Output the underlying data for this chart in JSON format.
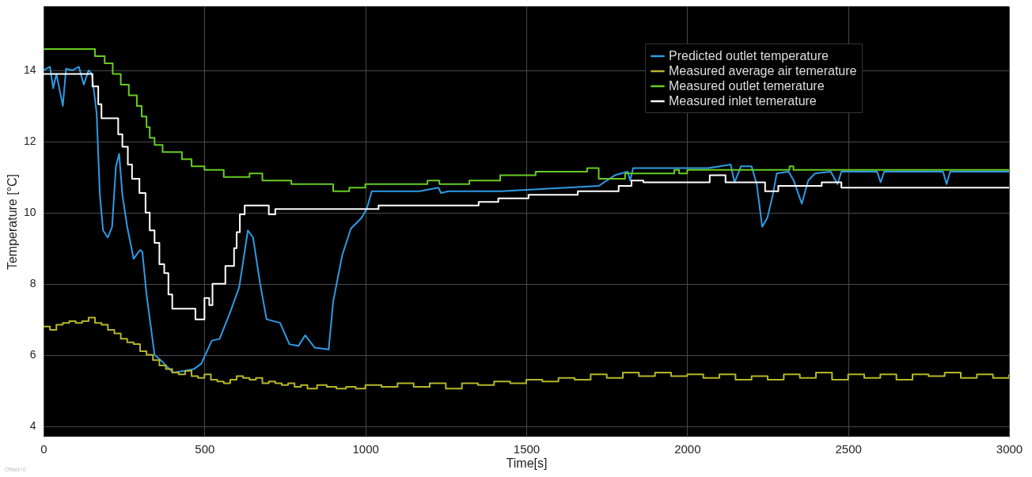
{
  "chart_data": {
    "type": "line",
    "xlabel": "Time[s]",
    "ylabel": "Temperature [°C]",
    "xlim": [
      0,
      3000
    ],
    "xticks": [
      0,
      500,
      1000,
      1500,
      2000,
      2500,
      3000
    ],
    "ylim": [
      3.7,
      15.8
    ],
    "yticks": [
      4,
      6,
      8,
      10,
      12,
      14
    ],
    "grid": true,
    "legend": "top right",
    "line_style": "solid",
    "annotations": [
      "Offset=0"
    ],
    "series": [
      {
        "name": "Predicted outlet temperature",
        "type": "line",
        "color": "#2e9be6",
        "x": [
          0,
          20,
          30,
          40,
          60,
          70,
          90,
          110,
          125,
          140,
          150,
          165,
          175,
          185,
          200,
          213,
          225,
          235,
          245,
          260,
          280,
          300,
          307,
          320,
          345,
          370,
          402,
          440,
          467,
          490,
          523,
          547,
          580,
          608,
          635,
          651,
          673,
          693,
          735,
          764,
          792,
          813,
          843,
          886,
          900,
          928,
          955,
          988,
          1004,
          1020,
          1168,
          1227,
          1235,
          1258,
          1422,
          1725,
          1775,
          1815,
          1823,
          1832,
          2066,
          2135,
          2147,
          2167,
          2200,
          2216,
          2233,
          2249,
          2266,
          2278,
          2315,
          2331,
          2356,
          2376,
          2397,
          2446,
          2467,
          2479,
          2590,
          2601,
          2612,
          2795,
          2806,
          2817,
          3000
        ],
        "values": [
          14.0,
          14.1,
          13.5,
          13.9,
          13.0,
          14.05,
          14.0,
          14.1,
          13.6,
          14.0,
          13.9,
          12.8,
          10.5,
          9.5,
          9.3,
          9.6,
          11.3,
          11.65,
          10.5,
          9.6,
          8.7,
          8.95,
          8.9,
          7.7,
          6.0,
          5.8,
          5.5,
          5.55,
          5.6,
          5.75,
          6.4,
          6.45,
          7.2,
          7.9,
          9.5,
          9.3,
          8.0,
          7.0,
          6.9,
          6.3,
          6.25,
          6.55,
          6.2,
          6.15,
          7.5,
          8.8,
          9.55,
          9.85,
          10.1,
          10.6,
          10.6,
          10.7,
          10.55,
          10.6,
          10.6,
          10.75,
          11.05,
          11.15,
          10.9,
          11.25,
          11.25,
          11.35,
          10.85,
          11.3,
          11.3,
          10.8,
          9.6,
          9.85,
          10.5,
          11.1,
          11.15,
          10.9,
          10.25,
          10.9,
          11.1,
          11.15,
          10.8,
          11.15,
          11.15,
          10.85,
          11.15,
          11.15,
          10.8,
          11.15,
          11.15
        ]
      },
      {
        "name": "Measured average air temerature",
        "type": "step",
        "color": "#b5b52a",
        "x": [
          0,
          20,
          40,
          60,
          80,
          100,
          120,
          140,
          160,
          180,
          200,
          220,
          240,
          260,
          280,
          300,
          320,
          340,
          360,
          380,
          400,
          420,
          440,
          460,
          480,
          500,
          520,
          540,
          560,
          580,
          600,
          620,
          640,
          660,
          680,
          700,
          720,
          740,
          760,
          780,
          800,
          820,
          850,
          880,
          910,
          940,
          970,
          1000,
          1050,
          1100,
          1150,
          1200,
          1250,
          1300,
          1350,
          1400,
          1450,
          1500,
          1550,
          1600,
          1650,
          1700,
          1750,
          1800,
          1850,
          1900,
          1950,
          2000,
          2050,
          2100,
          2150,
          2200,
          2250,
          2300,
          2350,
          2400,
          2450,
          2500,
          2550,
          2600,
          2650,
          2700,
          2750,
          2800,
          2850,
          2900,
          2950,
          3000
        ],
        "values": [
          6.8,
          6.7,
          6.85,
          6.9,
          6.95,
          6.9,
          6.95,
          7.05,
          6.9,
          6.85,
          6.7,
          6.6,
          6.45,
          6.35,
          6.3,
          6.1,
          6.0,
          5.85,
          5.7,
          5.6,
          5.5,
          5.45,
          5.55,
          5.4,
          5.35,
          5.45,
          5.3,
          5.25,
          5.2,
          5.3,
          5.4,
          5.35,
          5.3,
          5.35,
          5.2,
          5.25,
          5.2,
          5.15,
          5.2,
          5.1,
          5.15,
          5.05,
          5.15,
          5.1,
          5.05,
          5.1,
          5.05,
          5.15,
          5.1,
          5.2,
          5.1,
          5.2,
          5.05,
          5.2,
          5.15,
          5.25,
          5.2,
          5.3,
          5.25,
          5.35,
          5.3,
          5.45,
          5.35,
          5.5,
          5.4,
          5.5,
          5.4,
          5.45,
          5.35,
          5.45,
          5.3,
          5.4,
          5.3,
          5.45,
          5.35,
          5.5,
          5.3,
          5.45,
          5.35,
          5.45,
          5.3,
          5.45,
          5.4,
          5.5,
          5.35,
          5.45,
          5.35,
          5.45
        ]
      },
      {
        "name": "Measured outlet temerature",
        "type": "step",
        "color": "#66cc22",
        "x": [
          0,
          160,
          190,
          215,
          240,
          265,
          290,
          305,
          320,
          330,
          345,
          370,
          430,
          460,
          500,
          560,
          640,
          680,
          770,
          900,
          950,
          1000,
          1193,
          1230,
          1323,
          1419,
          1529,
          1689,
          1725,
          1807,
          1960,
          1975,
          2000,
          2318,
          2330,
          3000
        ],
        "values": [
          14.6,
          14.4,
          14.2,
          13.9,
          13.6,
          13.3,
          13.0,
          12.7,
          12.4,
          12.1,
          11.9,
          11.7,
          11.5,
          11.3,
          11.2,
          11.0,
          11.1,
          10.9,
          10.8,
          10.6,
          10.7,
          10.8,
          10.9,
          10.8,
          10.9,
          11.05,
          11.15,
          11.25,
          10.95,
          11.1,
          11.2,
          11.1,
          11.2,
          11.3,
          11.2,
          11.2
        ]
      },
      {
        "name": "Measured inlet temerature",
        "type": "step",
        "color": "#ffffff",
        "x": [
          0,
          152,
          170,
          180,
          232,
          245,
          262,
          275,
          298,
          317,
          330,
          345,
          360,
          375,
          388,
          400,
          472,
          500,
          515,
          525,
          565,
          592,
          600,
          610,
          625,
          700,
          720,
          1041,
          1352,
          1413,
          1507,
          1660,
          1787,
          1827,
          1864,
          2070,
          2119,
          2242,
          2283,
          2418,
          2479,
          3000
        ],
        "values": [
          13.9,
          13.55,
          13.05,
          12.65,
          12.2,
          11.85,
          11.35,
          10.95,
          10.55,
          10.0,
          9.5,
          9.15,
          8.55,
          8.3,
          7.7,
          7.3,
          7.0,
          7.6,
          7.4,
          8.0,
          8.5,
          9.0,
          9.45,
          9.95,
          10.2,
          9.95,
          10.1,
          10.2,
          10.3,
          10.4,
          10.5,
          10.6,
          10.75,
          10.9,
          10.85,
          11.05,
          10.85,
          10.6,
          10.75,
          10.85,
          10.7,
          10.7
        ]
      }
    ]
  }
}
